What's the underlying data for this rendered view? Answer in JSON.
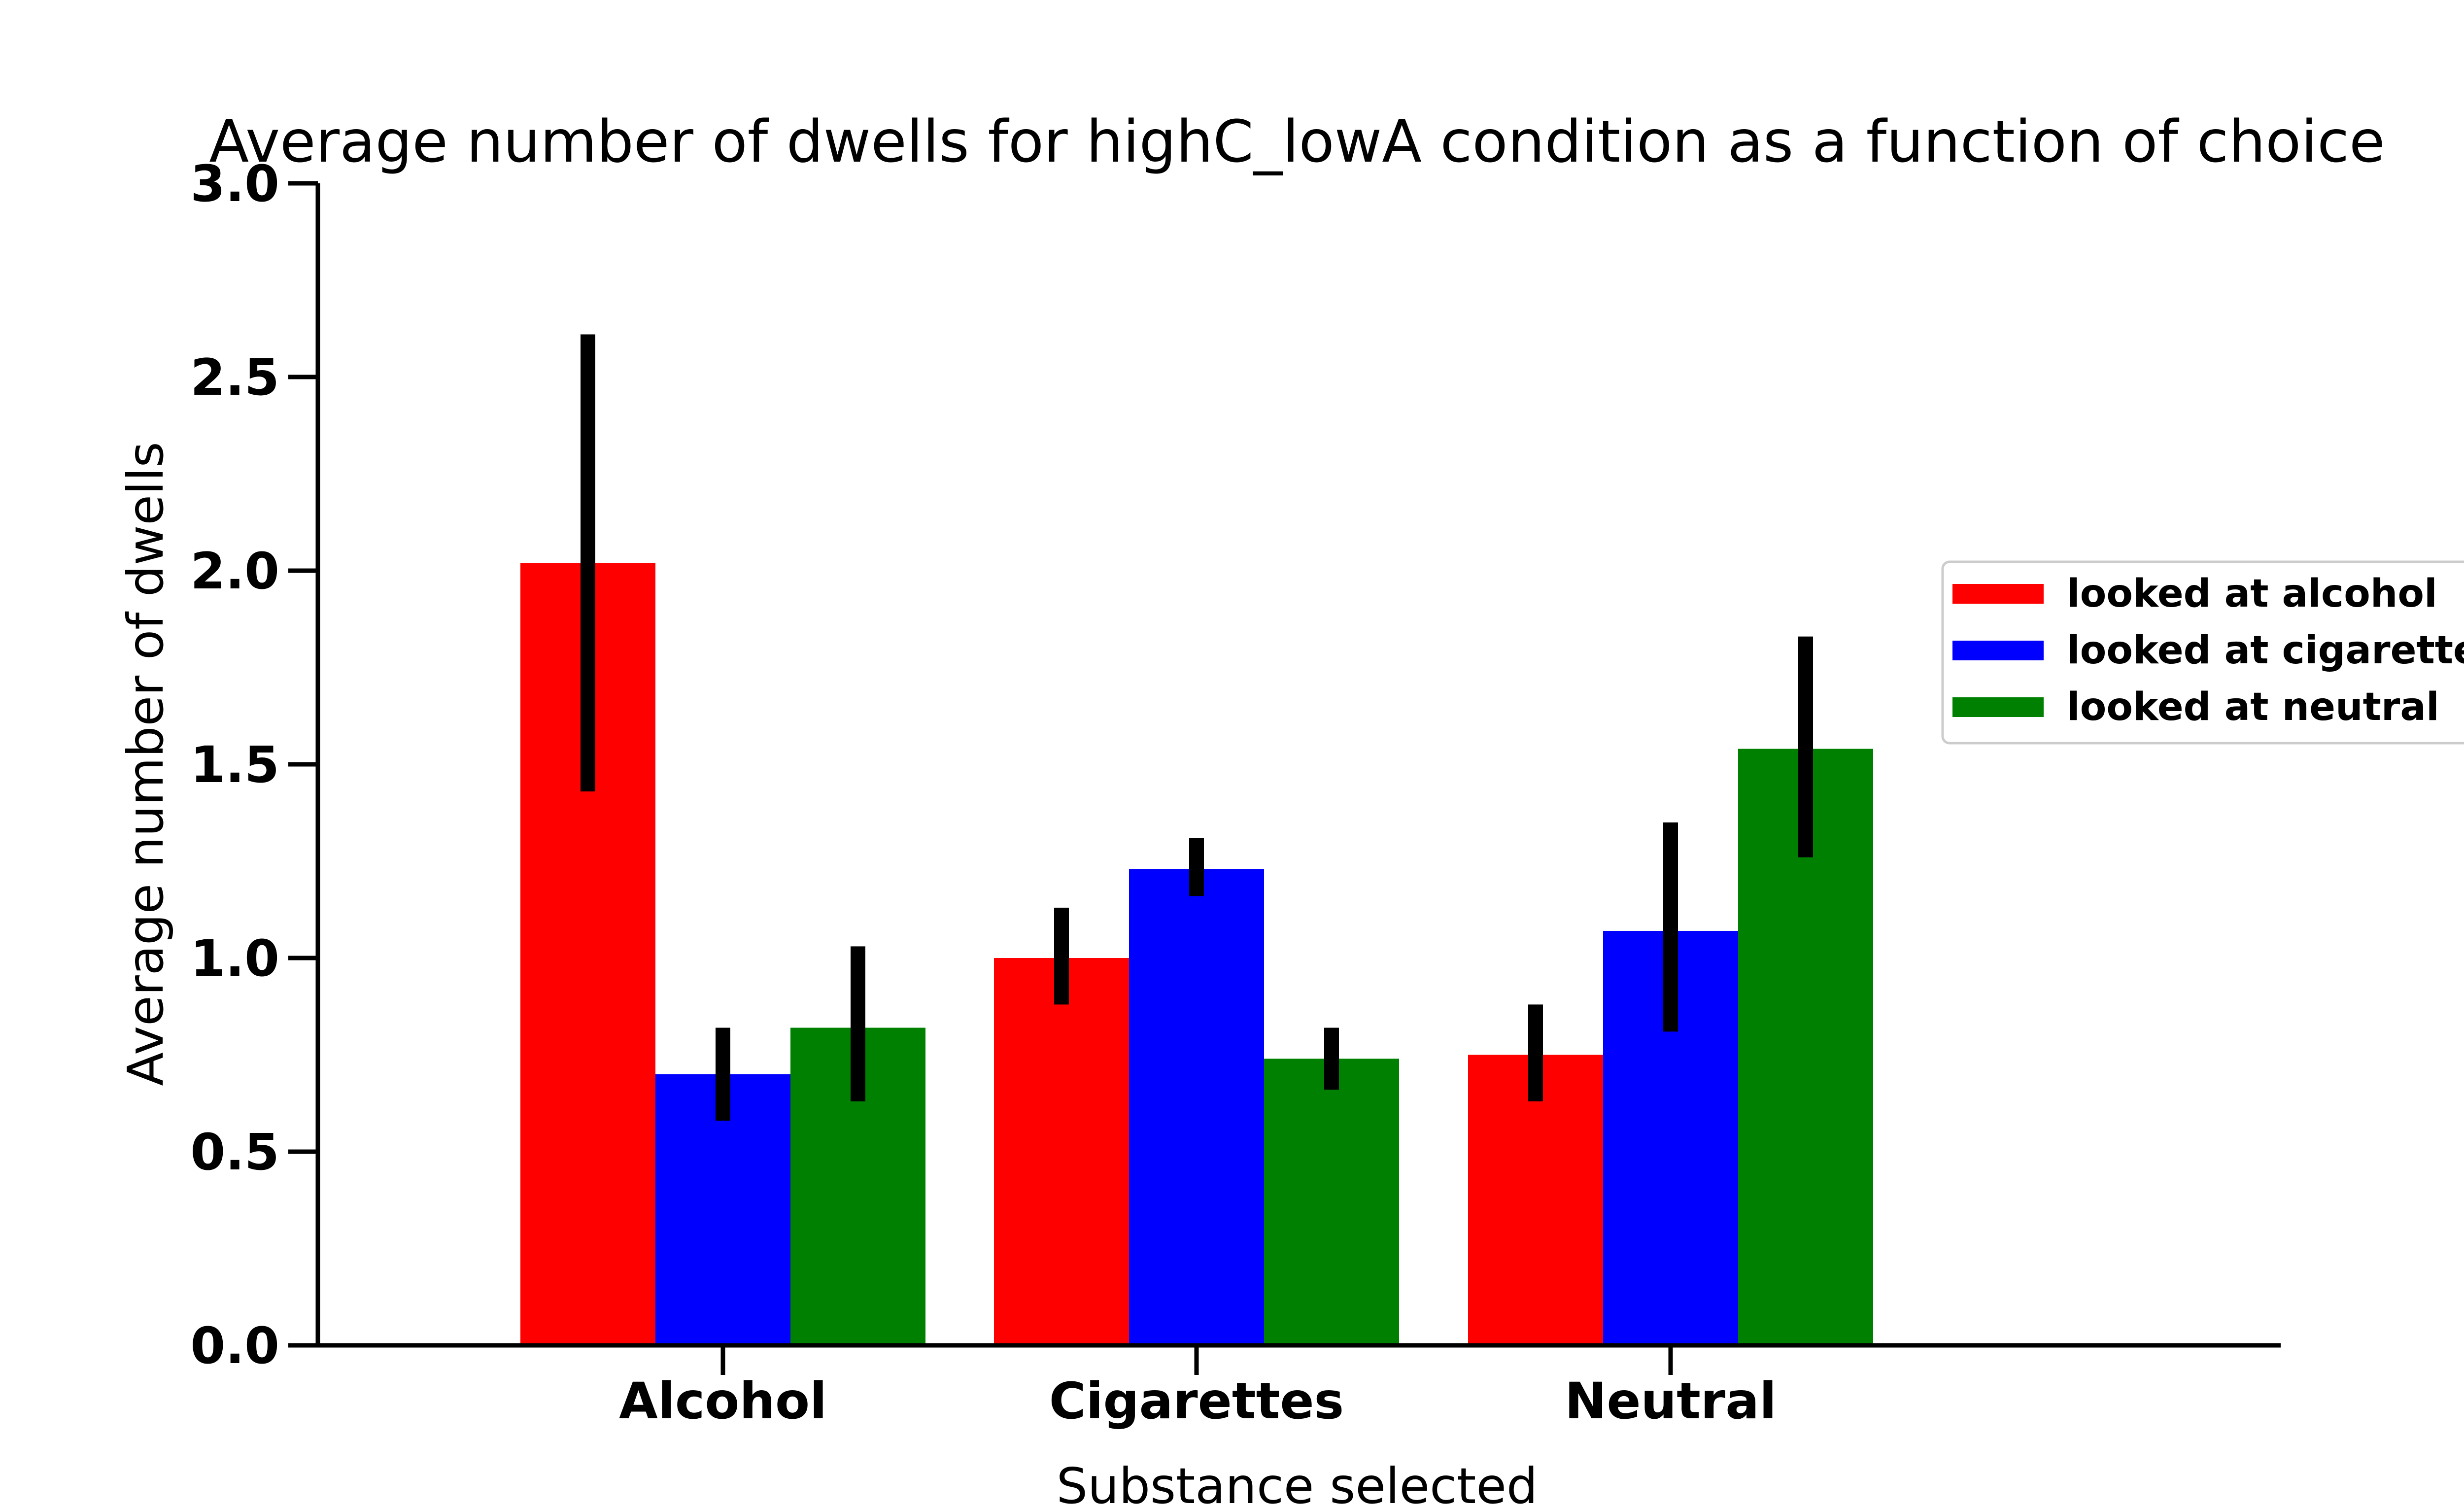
{
  "chart_data": {
    "type": "bar",
    "title": "Average number of dwells for highC_lowA condition as a function of choice",
    "xlabel": "Substance selected",
    "ylabel": "Average number of dwells",
    "categories": [
      "Alcohol",
      "Cigarettes",
      "Neutral"
    ],
    "ylim": [
      0,
      3
    ],
    "yticks": [
      "0.0",
      "0.5",
      "1.0",
      "1.5",
      "2.0",
      "2.5",
      "3.0"
    ],
    "series": [
      {
        "name": "looked at alcohol",
        "color": "#ff0000",
        "values": [
          2.02,
          1.0,
          0.75
        ],
        "err_low": [
          1.43,
          0.88,
          0.63
        ],
        "err_high": [
          2.61,
          1.13,
          0.88
        ]
      },
      {
        "name": "looked at cigarettes",
        "color": "#0000ff",
        "values": [
          0.7,
          1.23,
          1.07
        ],
        "err_low": [
          0.58,
          1.16,
          0.81
        ],
        "err_high": [
          0.82,
          1.31,
          1.35
        ]
      },
      {
        "name": "looked at neutral",
        "color": "#008000",
        "values": [
          0.82,
          0.74,
          1.54
        ],
        "err_low": [
          0.63,
          0.66,
          1.26
        ],
        "err_high": [
          1.03,
          0.82,
          1.83
        ]
      }
    ],
    "grid": false,
    "legend": "right"
  }
}
